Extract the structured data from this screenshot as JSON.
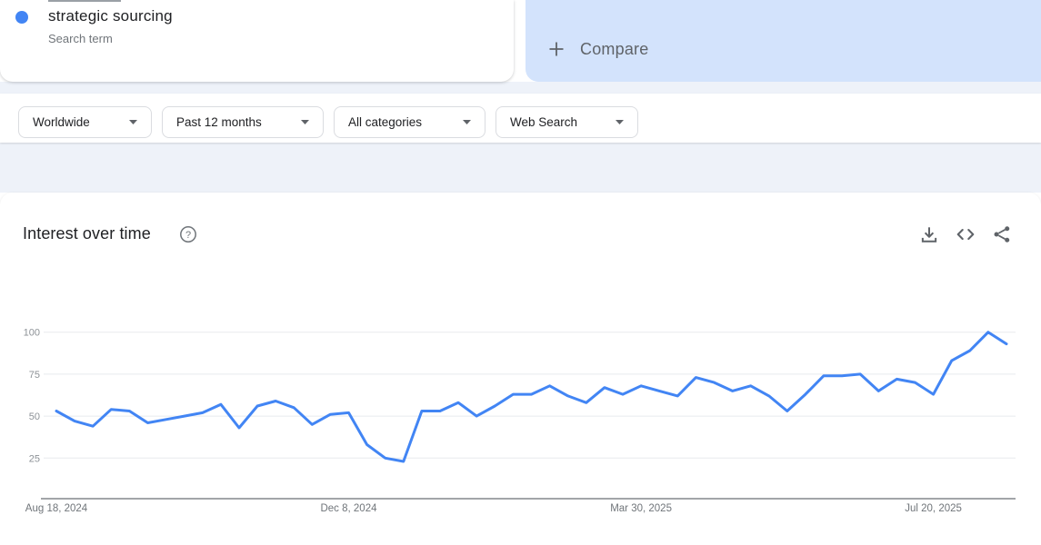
{
  "header": {
    "search_term": {
      "title": "strategic sourcing",
      "subtitle": "Search term"
    },
    "compare": {
      "label": "Compare"
    }
  },
  "filters": [
    {
      "label": "Worldwide"
    },
    {
      "label": "Past 12 months"
    },
    {
      "label": "All categories"
    },
    {
      "label": "Web Search"
    }
  ],
  "chart_card": {
    "title": "Interest over time",
    "icons": [
      "help-icon",
      "download-icon",
      "embed-code-icon",
      "share-icon"
    ]
  },
  "colors": {
    "line": "#4285f4",
    "term_dot": "#4285f4",
    "compare_card_bg": "#d3e3fc",
    "band_bg": "#eef2f9",
    "grid": "#e8eaed",
    "axis": "#6b6f73",
    "y_label": "#8d9297",
    "x_label": "#70757a"
  },
  "chart_data": {
    "type": "line",
    "title": "Interest over time",
    "xlabel": "",
    "ylabel": "",
    "grid": true,
    "legend": "none",
    "ylim": [
      0,
      100
    ],
    "yticks": [
      25,
      50,
      75,
      100
    ],
    "x_unit": "weekly points, Aug 18 2024 through Aug 17 2025",
    "x_tick_indices": [
      0,
      16,
      32,
      48
    ],
    "x_tick_labels": [
      "Aug 18, 2024",
      "Dec 8, 2024",
      "Mar 30, 2025",
      "Jul 20, 2025"
    ],
    "series": [
      {
        "name": "strategic sourcing",
        "color": "#4285f4",
        "values": [
          53,
          47,
          44,
          54,
          53,
          46,
          48,
          50,
          52,
          57,
          43,
          56,
          59,
          55,
          45,
          51,
          52,
          33,
          25,
          23,
          53,
          53,
          58,
          50,
          56,
          63,
          63,
          68,
          62,
          58,
          67,
          63,
          68,
          65,
          62,
          73,
          70,
          65,
          68,
          62,
          53,
          63,
          74,
          74,
          75,
          65,
          72,
          70,
          63,
          83,
          89,
          100,
          93
        ]
      }
    ]
  }
}
